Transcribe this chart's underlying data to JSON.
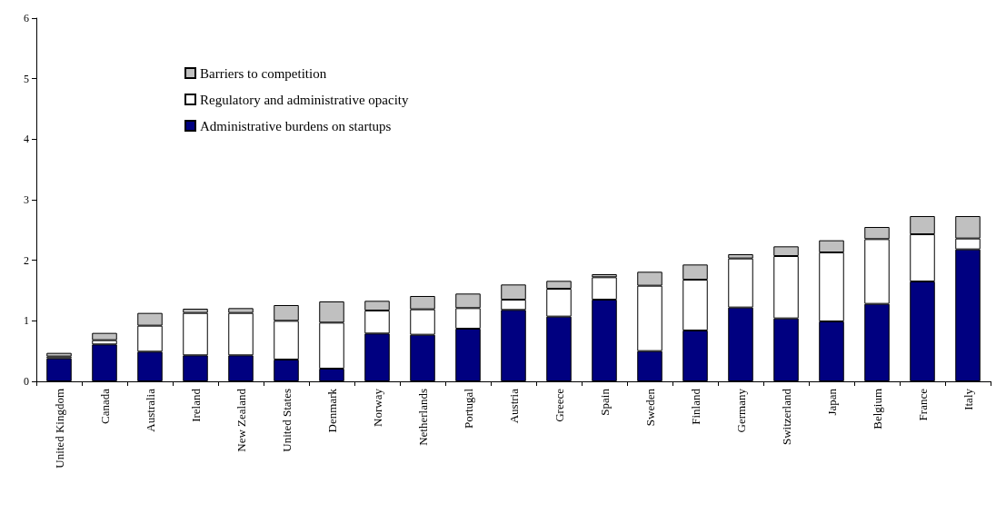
{
  "chart_data": {
    "type": "bar",
    "stacked": true,
    "categories": [
      "United Kingdom",
      "Canada",
      "Australia",
      "Ireland",
      "New Zealand",
      "United States",
      "Denmark",
      "Norway",
      "Netherlands",
      "Portugal",
      "Austria",
      "Greece",
      "Spain",
      "Sweden",
      "Finland",
      "Germany",
      "Switzerland",
      "Japan",
      "Belgium",
      "France",
      "Italy"
    ],
    "series": [
      {
        "name": "Administrative burdens on startups",
        "color": "#000080",
        "values": [
          0.38,
          0.61,
          0.49,
          0.43,
          0.43,
          0.36,
          0.21,
          0.79,
          0.77,
          0.87,
          1.18,
          1.07,
          1.35,
          0.5,
          0.84,
          1.22,
          1.04,
          0.99,
          1.28,
          1.65,
          2.18
        ]
      },
      {
        "name": "Regulatory and administrative opacity",
        "color": "#ffffff",
        "values": [
          0.03,
          0.07,
          0.43,
          0.7,
          0.7,
          0.64,
          0.76,
          0.38,
          0.42,
          0.34,
          0.17,
          0.46,
          0.37,
          1.08,
          0.84,
          0.81,
          1.03,
          1.14,
          1.07,
          0.78,
          0.18
        ]
      },
      {
        "name": "Barriers to competition",
        "color": "#c0c0c0",
        "values": [
          0.06,
          0.12,
          0.21,
          0.07,
          0.08,
          0.26,
          0.35,
          0.16,
          0.22,
          0.24,
          0.25,
          0.13,
          0.05,
          0.23,
          0.25,
          0.07,
          0.16,
          0.2,
          0.2,
          0.3,
          0.37
        ]
      }
    ],
    "ylim": [
      0,
      6
    ],
    "yticks": [
      0,
      1,
      2,
      3,
      4,
      5,
      6
    ],
    "grid": false,
    "legend": "top left"
  }
}
